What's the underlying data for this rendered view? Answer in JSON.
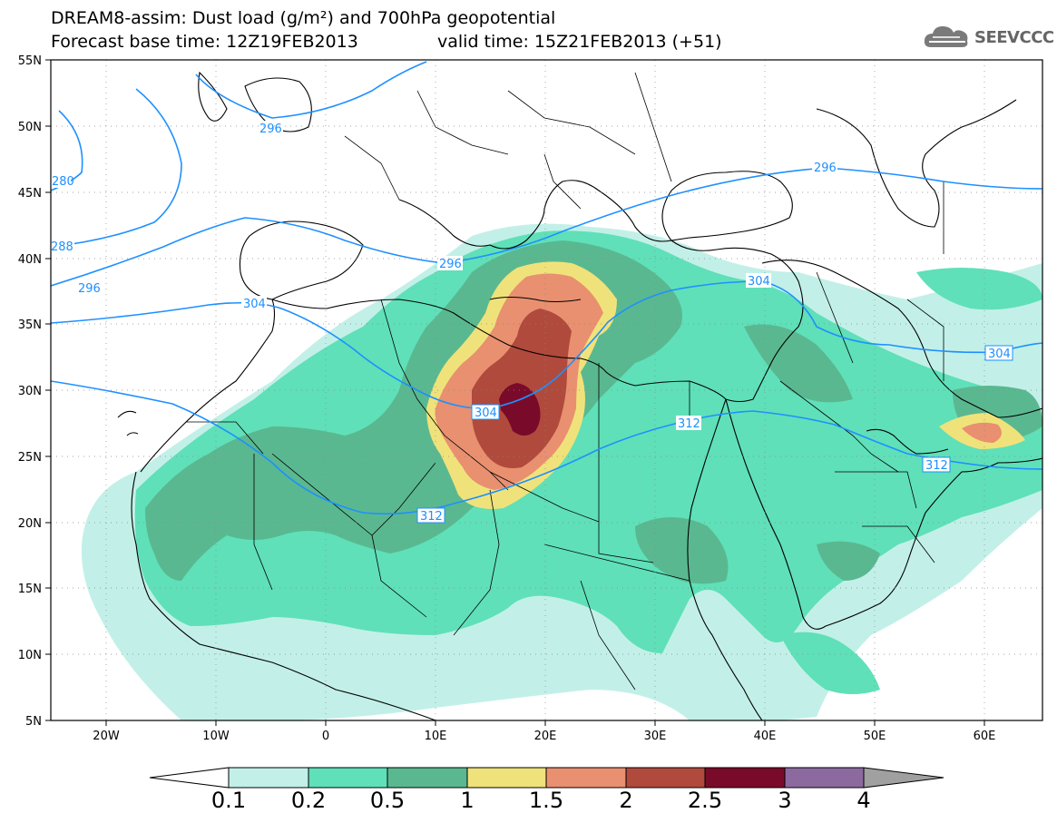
{
  "title": {
    "line1": "DREAM8-assim: Dust load (g/m²) and 700hPa geopotential",
    "line2": "Forecast base time: 12Z19FEB2013",
    "valid": "valid time: 15Z21FEB2013 (+51)"
  },
  "logo": {
    "text": "SEEVCCC",
    "icon": "cloud-icon"
  },
  "map": {
    "lon_range": [
      -25,
      65
    ],
    "lat_range": [
      5,
      55
    ],
    "lon_ticks": [
      "20W",
      "10W",
      "0",
      "10E",
      "20E",
      "30E",
      "40E",
      "50E",
      "60E"
    ],
    "lat_ticks": [
      "55N",
      "50N",
      "45N",
      "40N",
      "35N",
      "30N",
      "25N",
      "20N",
      "15N",
      "10N",
      "5N"
    ],
    "contour_color": "#1e90ff",
    "contour_labels": [
      {
        "text": "280"
      },
      {
        "text": "288"
      },
      {
        "text": "296"
      },
      {
        "text": "296"
      },
      {
        "text": "296"
      },
      {
        "text": "296"
      },
      {
        "text": "304"
      },
      {
        "text": "304"
      },
      {
        "text": "304"
      },
      {
        "text": "304"
      },
      {
        "text": "312"
      },
      {
        "text": "312"
      },
      {
        "text": "312"
      }
    ]
  },
  "colorbar": {
    "labels": [
      "0.1",
      "0.2",
      "0.5",
      "1",
      "1.5",
      "2",
      "2.5",
      "3",
      "4"
    ],
    "colors": [
      "#ffffff",
      "#c2f0e8",
      "#5fe0b8",
      "#5ab890",
      "#f0e27a",
      "#e89070",
      "#b04a3c",
      "#7a0a2a",
      "#8c6aa0",
      "#a0a0a0"
    ]
  }
}
